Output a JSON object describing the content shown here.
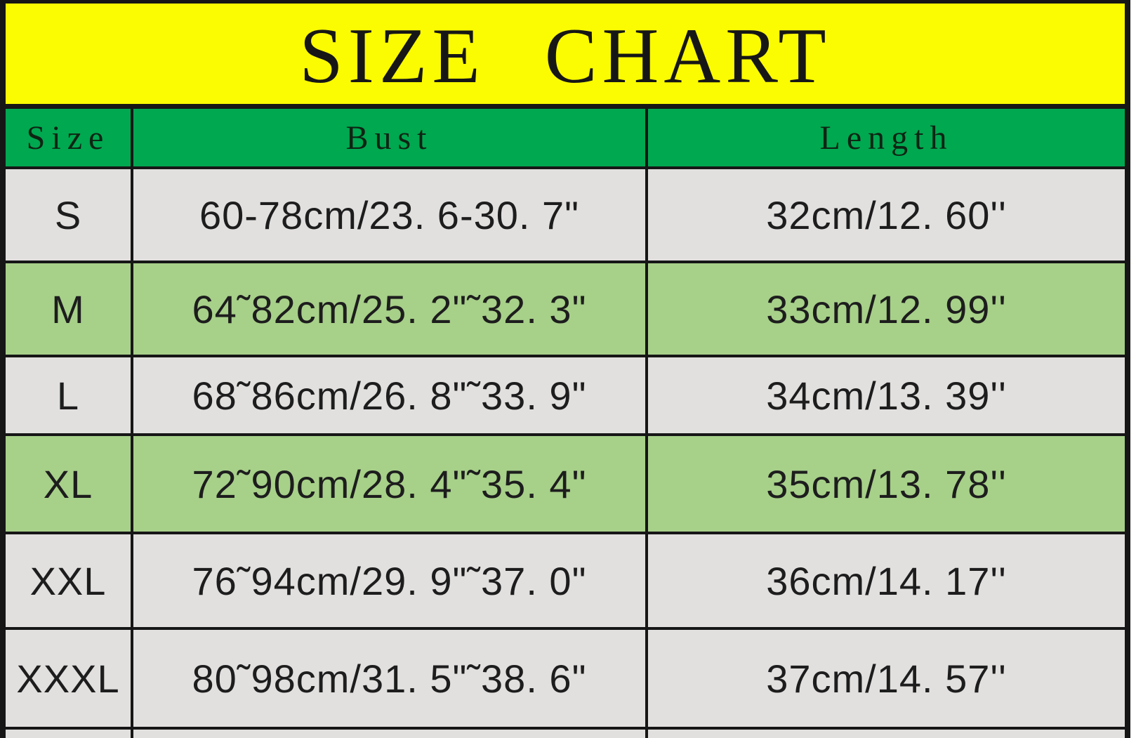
{
  "chart_data": {
    "type": "table",
    "title": "SIZE CHART",
    "columns": [
      "Size",
      "Bust",
      "Length"
    ],
    "rows": [
      [
        "S",
        "60-78cm/23. 6-30. 7\"",
        "32cm/12. 60''"
      ],
      [
        "M",
        "64˜82cm/25. 2\"˜32. 3\"",
        "33cm/12. 99''"
      ],
      [
        "L",
        "68˜86cm/26. 8\"˜33. 9\"",
        "34cm/13. 39''"
      ],
      [
        "XL",
        "72˜90cm/28. 4\"˜35. 4\"",
        "35cm/13. 78''"
      ],
      [
        "XXL",
        "76˜94cm/29. 9\"˜37. 0\"",
        "36cm/14. 17''"
      ],
      [
        "XXXL",
        "80˜98cm/31. 5\"˜38. 6\"",
        "37cm/14. 57''"
      ]
    ]
  },
  "colors": {
    "banner_bg": "#fbfb02",
    "header_bg": "#00a850",
    "row_colors": [
      "#e2e0df",
      "#a7d089",
      "#e2e0df",
      "#a7d089",
      "#e2e0df",
      "#e2e0df"
    ],
    "partial_row_bg": "#e2e0df",
    "border_black": "#161616"
  }
}
